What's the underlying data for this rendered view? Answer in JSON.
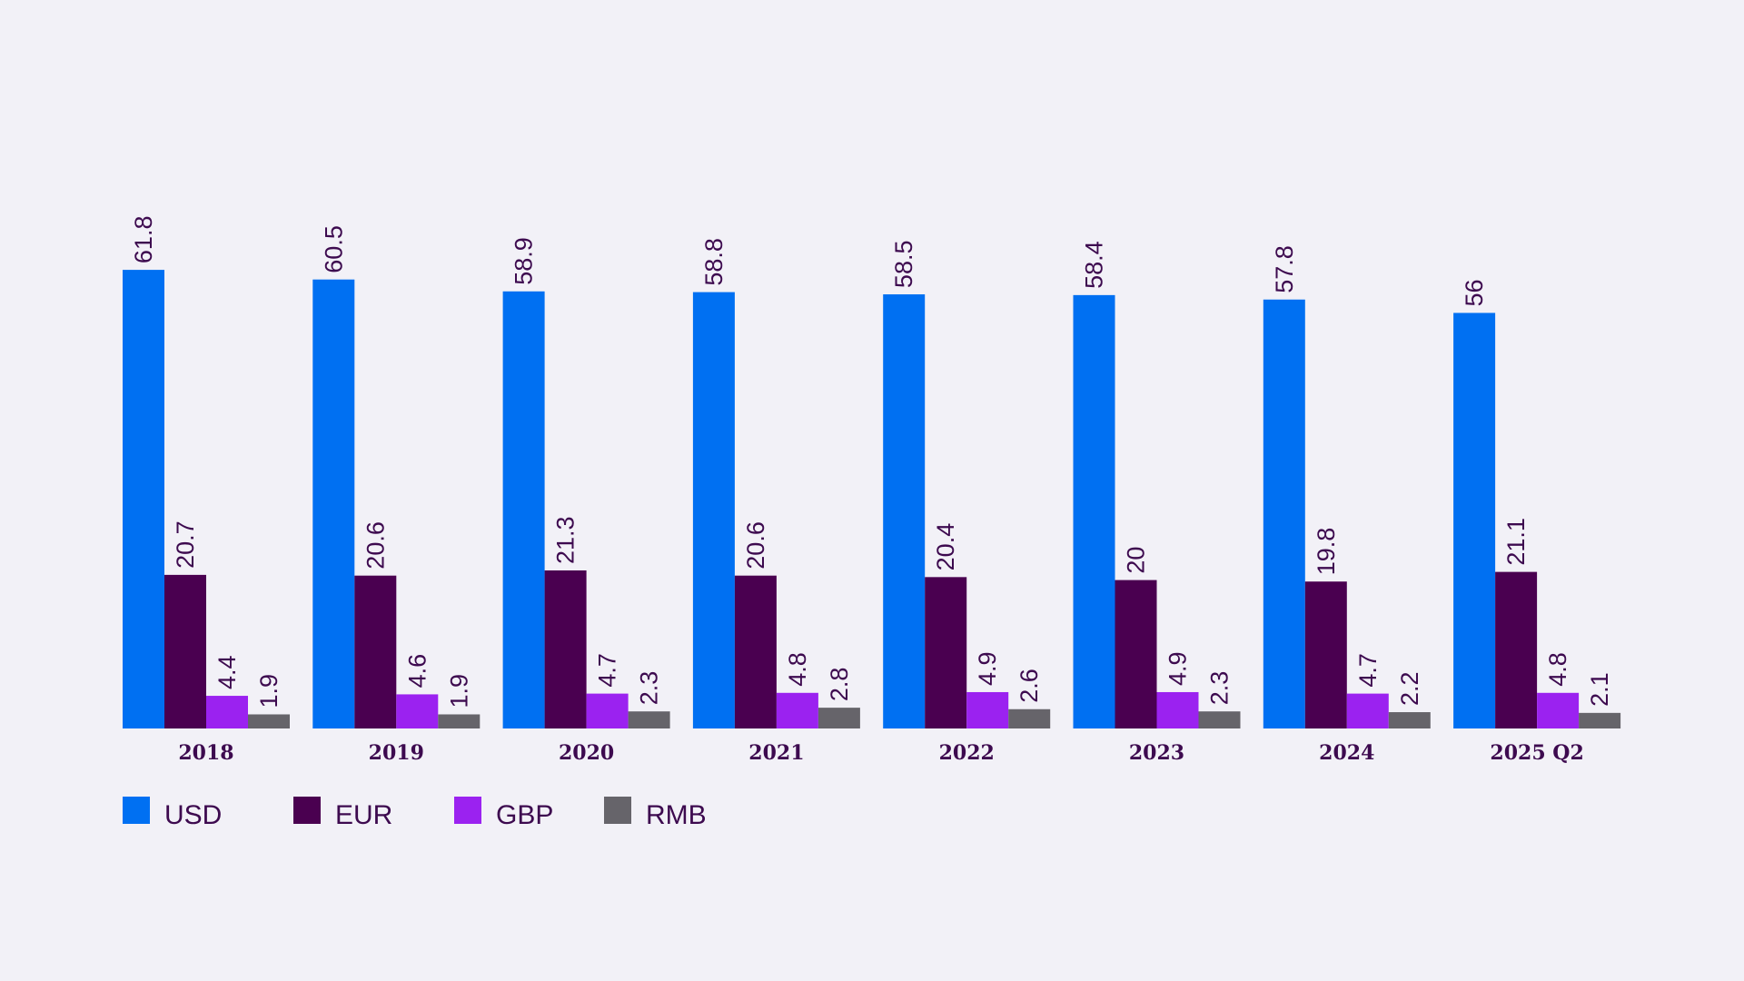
{
  "chart_data": {
    "type": "bar",
    "categories": [
      "2018",
      "2019",
      "2020",
      "2021",
      "2022",
      "2023",
      "2024",
      "2025 Q2"
    ],
    "series": [
      {
        "name": "USD",
        "color": "#0070f2",
        "values": [
          61.8,
          60.5,
          58.9,
          58.8,
          58.5,
          58.4,
          57.8,
          56
        ]
      },
      {
        "name": "EUR",
        "color": "#4a0050",
        "values": [
          20.7,
          20.6,
          21.3,
          20.6,
          20.4,
          20,
          19.8,
          21.1
        ]
      },
      {
        "name": "GBP",
        "color": "#9b22f0",
        "values": [
          4.4,
          4.6,
          4.7,
          4.8,
          4.9,
          4.9,
          4.7,
          4.8
        ]
      },
      {
        "name": "RMB",
        "color": "#66646a",
        "values": [
          1.9,
          1.9,
          2.3,
          2.8,
          2.6,
          2.3,
          2.2,
          2.1
        ]
      }
    ],
    "title": "",
    "xlabel": "",
    "ylabel": "",
    "ylim": [
      0,
      70
    ],
    "grid": false,
    "data_labels": true,
    "legend_position": "bottom-left"
  }
}
